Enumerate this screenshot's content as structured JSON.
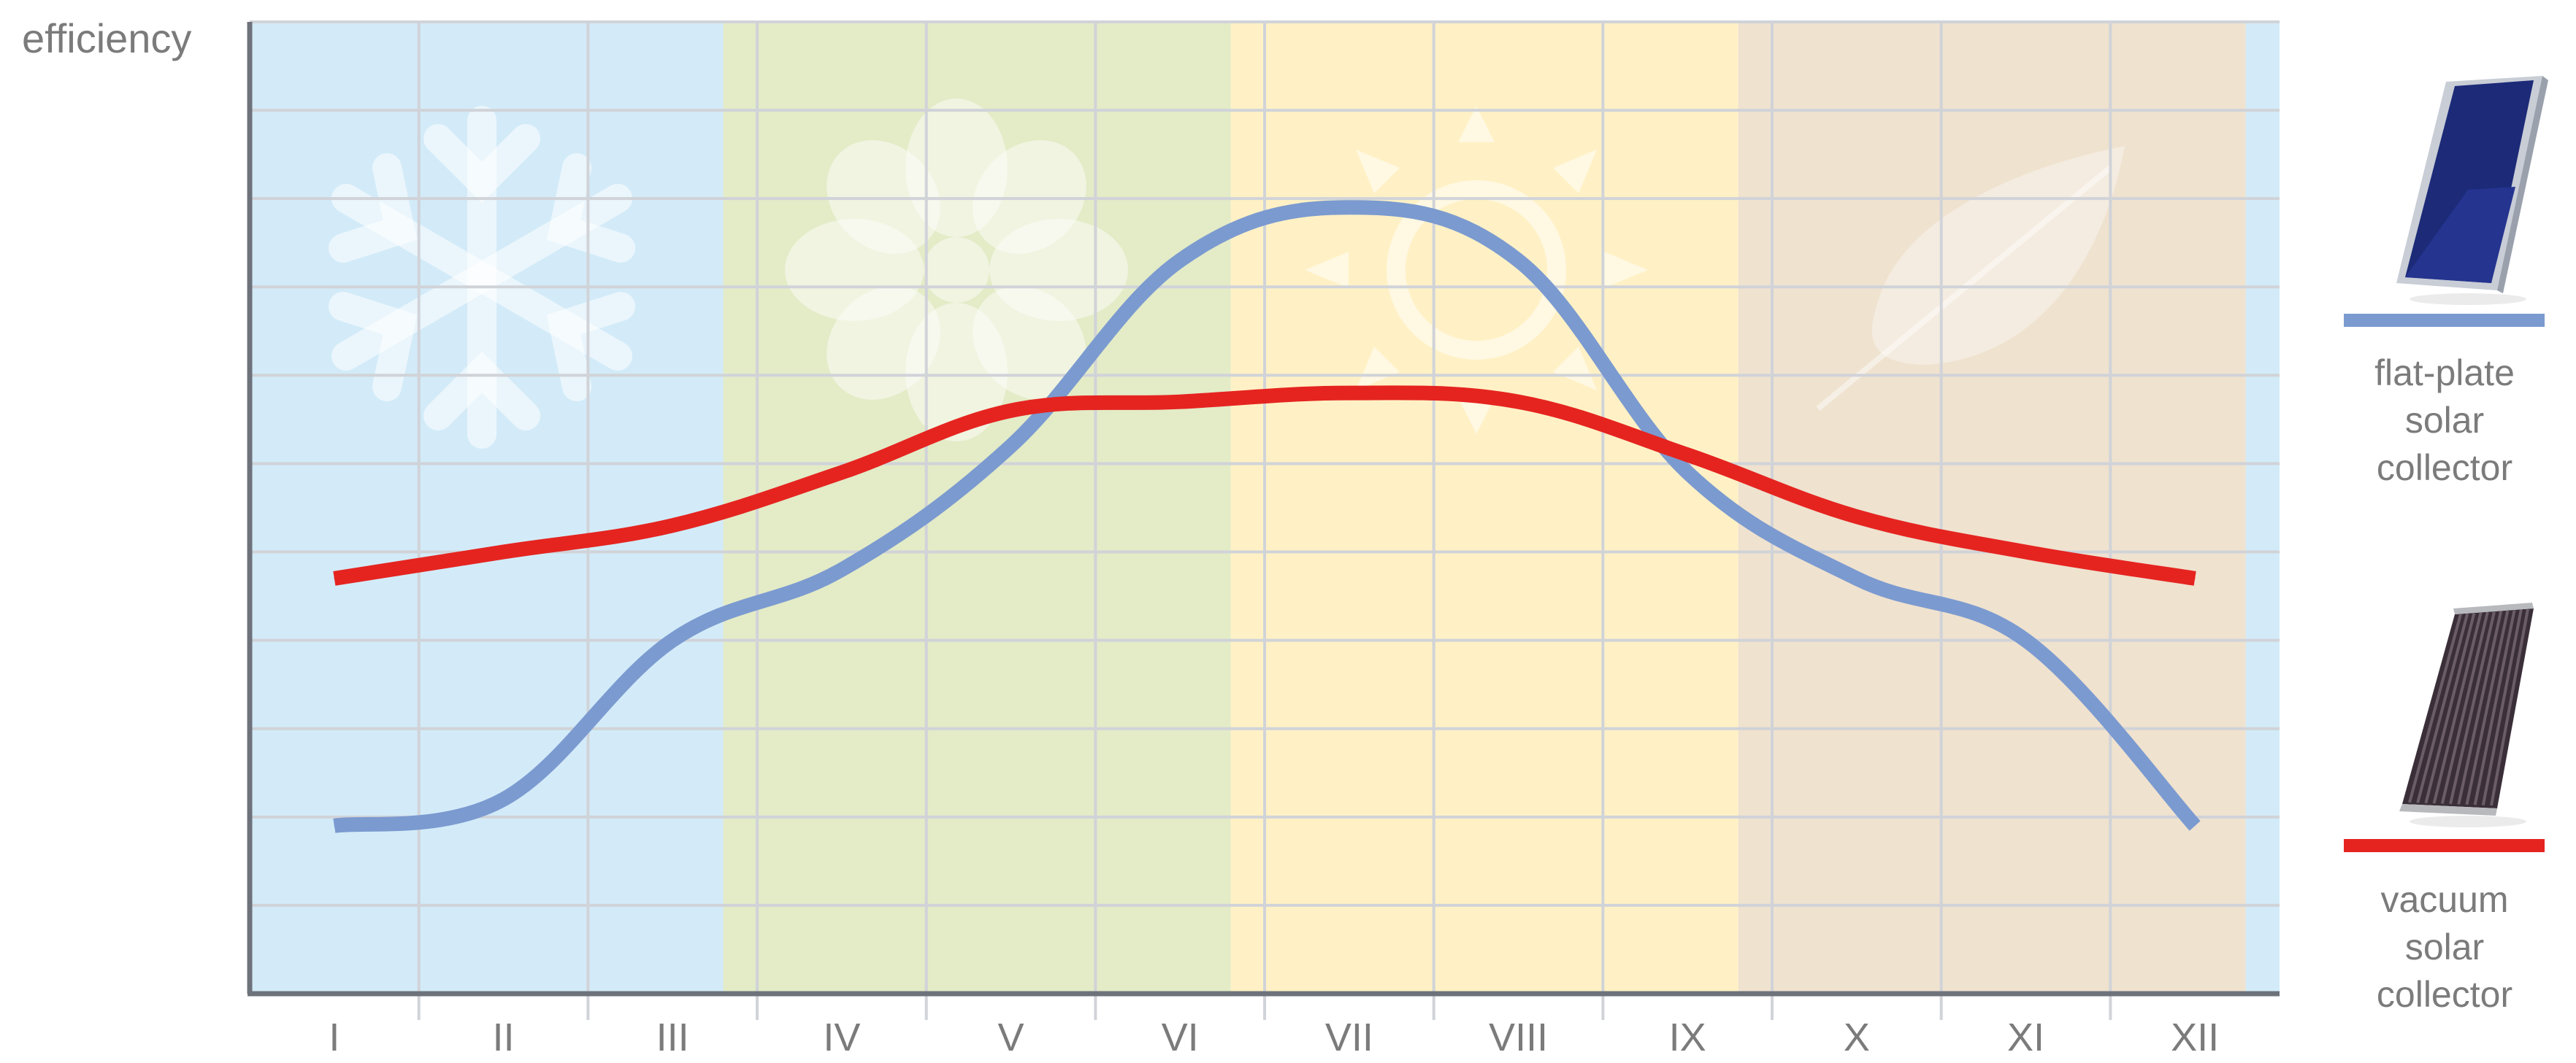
{
  "chart_data": {
    "type": "line",
    "ylabel": "efficiency",
    "xlabel": "",
    "categories": [
      "I",
      "II",
      "III",
      "IV",
      "V",
      "VI",
      "VII",
      "VIII",
      "IX",
      "X",
      "XI",
      "XII"
    ],
    "ylim": [
      0,
      11
    ],
    "grid": true,
    "legend_position": "right",
    "seasons": [
      {
        "name": "winter",
        "from": 0.5,
        "to": 3.3,
        "color": "#d3ebf8",
        "icon": "snowflake-icon"
      },
      {
        "name": "spring",
        "from": 3.3,
        "to": 6.3,
        "color": "#e3ebc7",
        "icon": "flower-icon"
      },
      {
        "name": "summer",
        "from": 6.3,
        "to": 9.3,
        "color": "#fff1c5",
        "icon": "sun-icon"
      },
      {
        "name": "autumn",
        "from": 9.3,
        "to": 12.3,
        "color": "#efe2cf",
        "icon": "leaf-icon"
      },
      {
        "name": "winter",
        "from": 12.3,
        "to": 12.6,
        "color": "#d3ebf8",
        "icon": ""
      }
    ],
    "series": [
      {
        "name": "flat-plate solar collector",
        "color": "#7b9ad0",
        "values": [
          1.9,
          2.2,
          4.0,
          4.8,
          6.2,
          8.3,
          8.9,
          8.3,
          5.9,
          4.7,
          4.0,
          1.9
        ]
      },
      {
        "name": "vacuum solar collector",
        "color": "#e52420",
        "values": [
          4.7,
          5.0,
          5.3,
          5.9,
          6.6,
          6.7,
          6.8,
          6.7,
          6.1,
          5.4,
          5.0,
          4.7
        ]
      }
    ],
    "legend": [
      {
        "lines": [
          "flat-plate",
          "solar",
          "collector"
        ],
        "color": "#7b9ad0",
        "icon": "flat-plate-collector-icon"
      },
      {
        "lines": [
          "vacuum",
          "solar",
          "collector"
        ],
        "color": "#e52420",
        "icon": "vacuum-tube-collector-icon"
      }
    ]
  }
}
